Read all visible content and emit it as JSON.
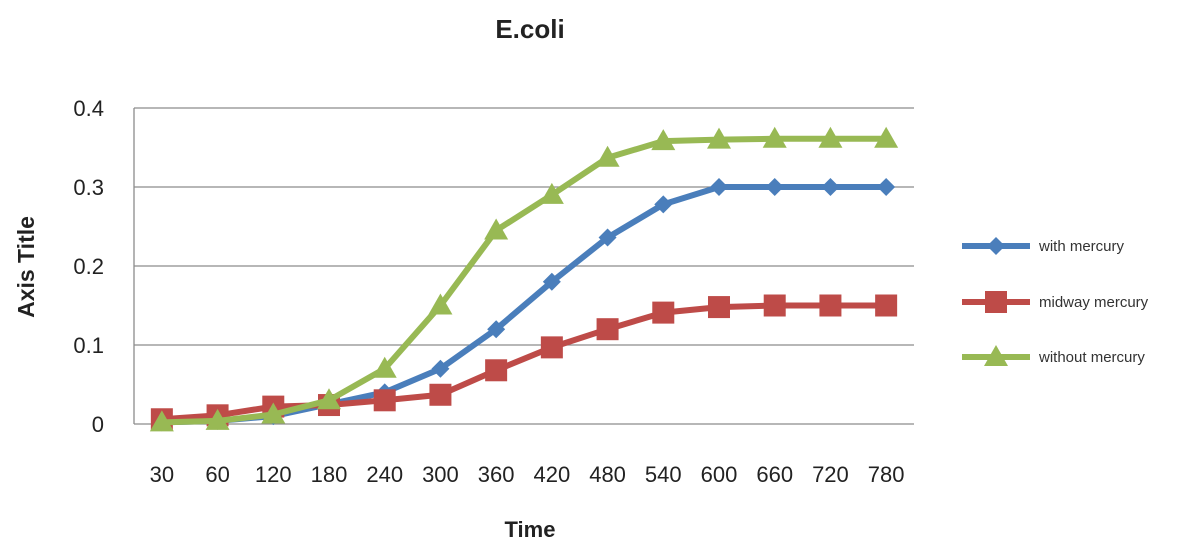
{
  "chart_data": {
    "type": "line",
    "title": "E.coli",
    "xlabel": "Time",
    "ylabel": "Axis Title",
    "categories": [
      "30",
      "60",
      "120",
      "180",
      "240",
      "300",
      "360",
      "420",
      "480",
      "540",
      "600",
      "660",
      "720",
      "780"
    ],
    "ylim": [
      0,
      0.4
    ],
    "yticks": [
      0,
      0.1,
      0.2,
      0.3,
      0.4
    ],
    "ytick_labels": [
      "0",
      "0.1",
      "0.2",
      "0.3",
      "0.4"
    ],
    "grid": true,
    "legend_position": "right",
    "series": [
      {
        "name": "with mercury",
        "color": "#4a7ebb",
        "marker": "diamond",
        "values": [
          0.002,
          0.004,
          0.01,
          0.025,
          0.04,
          0.07,
          0.12,
          0.18,
          0.236,
          0.278,
          0.3,
          0.3,
          0.3,
          0.3
        ]
      },
      {
        "name": "midway mercury",
        "color": "#be4b48",
        "marker": "square",
        "values": [
          0.006,
          0.011,
          0.022,
          0.024,
          0.03,
          0.037,
          0.068,
          0.097,
          0.12,
          0.141,
          0.148,
          0.15,
          0.15,
          0.15
        ]
      },
      {
        "name": "without mercury",
        "color": "#98b954",
        "marker": "triangle",
        "values": [
          0.002,
          0.004,
          0.012,
          0.03,
          0.07,
          0.15,
          0.245,
          0.29,
          0.337,
          0.358,
          0.36,
          0.361,
          0.361,
          0.361
        ]
      }
    ]
  }
}
